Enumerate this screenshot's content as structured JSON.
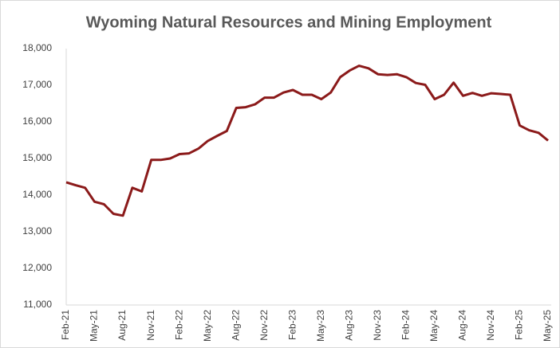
{
  "chart_data": {
    "type": "line",
    "title": "Wyoming Natural Resources and Mining Employment",
    "categories": [
      "Feb-21",
      null,
      null,
      "May-21",
      null,
      null,
      "Aug-21",
      null,
      null,
      "Nov-21",
      null,
      null,
      "Feb-22",
      null,
      null,
      "May-22",
      null,
      null,
      "Aug-22",
      null,
      null,
      "Nov-22",
      null,
      null,
      "Feb-23",
      null,
      null,
      "May-23",
      null,
      null,
      "Aug-23",
      null,
      null,
      "Nov-23",
      null,
      null,
      "Feb-24",
      null,
      null,
      "May-24",
      null,
      null,
      "Aug-24",
      null,
      null,
      "Nov-24",
      null,
      null,
      "Feb-25",
      null,
      null,
      "May-25"
    ],
    "series": [
      {
        "name": "Employment",
        "color": "#8b1a1a",
        "values": [
          14350,
          14270,
          14200,
          13820,
          13750,
          13490,
          13440,
          14200,
          14100,
          14960,
          14960,
          15000,
          15120,
          15140,
          15270,
          15480,
          15620,
          15750,
          16380,
          16400,
          16480,
          16660,
          16660,
          16800,
          16870,
          16740,
          16740,
          16620,
          16800,
          17220,
          17400,
          17530,
          17460,
          17300,
          17280,
          17300,
          17220,
          17060,
          17010,
          16620,
          16740,
          17070,
          16710,
          16790,
          16710,
          16780,
          16760,
          16740,
          15900,
          15770,
          15700,
          15490
        ]
      }
    ],
    "ylim": [
      11000,
      18000
    ],
    "yticks": [
      {
        "value": 11000,
        "label": "11,000"
      },
      {
        "value": 12000,
        "label": "12,000"
      },
      {
        "value": 13000,
        "label": "13,000"
      },
      {
        "value": 14000,
        "label": "14,000"
      },
      {
        "value": 15000,
        "label": "15,000"
      },
      {
        "value": 16000,
        "label": "16,000"
      },
      {
        "value": 17000,
        "label": "17,000"
      },
      {
        "value": 18000,
        "label": "18,000"
      }
    ],
    "grid": false
  }
}
